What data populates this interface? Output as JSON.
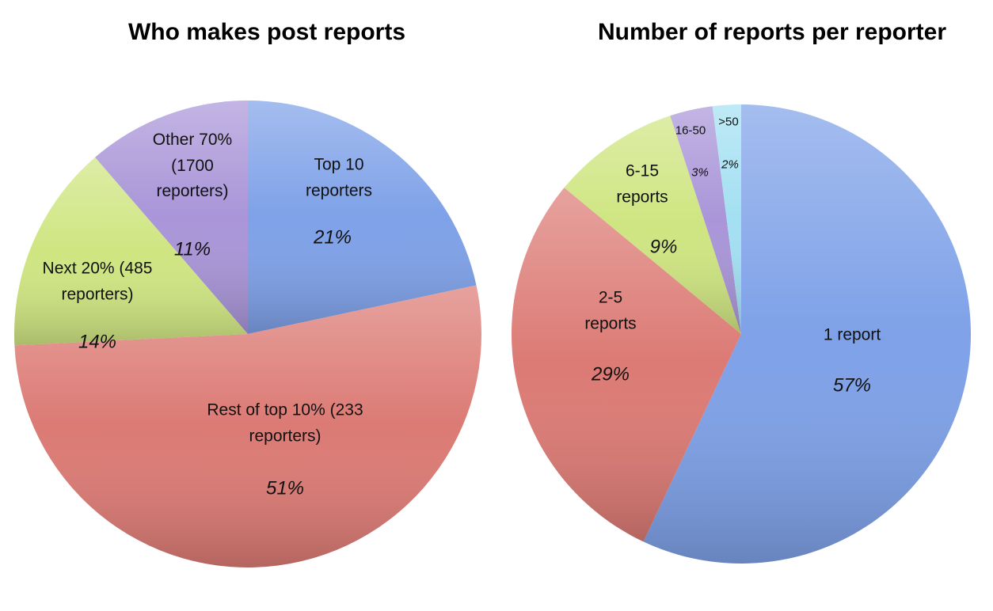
{
  "chart_data": [
    {
      "type": "pie",
      "title": "Who makes post reports",
      "categories": [
        "Top 10 reporters",
        "Rest of top 10% (233 reporters)",
        "Next 20% (485 reporters)",
        "Other 70% (1700 reporters)"
      ],
      "values": [
        21,
        51,
        14,
        11
      ],
      "value_labels": [
        "21%",
        "51%",
        "14%",
        "11%"
      ],
      "colors": [
        "#7ea1e8",
        "#dc7a74",
        "#cfe581",
        "#a995d8"
      ]
    },
    {
      "type": "pie",
      "title": "Number of reports per reporter",
      "categories": [
        "1 report",
        "2-5 reports",
        "6-15 reports",
        "16-50",
        ">50"
      ],
      "values": [
        57,
        29,
        9,
        3,
        2
      ],
      "value_labels": [
        "57%",
        "29%",
        "9%",
        "3%",
        "2%"
      ],
      "colors": [
        "#7ea1e8",
        "#dc7a74",
        "#cfe581",
        "#a995d8",
        "#a3e0f2"
      ]
    }
  ]
}
